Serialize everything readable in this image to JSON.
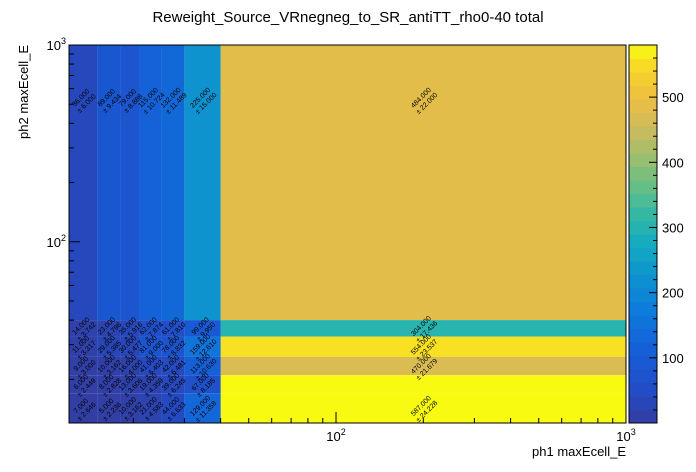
{
  "chart_data": {
    "type": "heatmap",
    "title": "Reweight_Source_VRnegneg_to_SR_antiTT_rho0-40 total",
    "xlabel": "ph1 maxEcell_E",
    "ylabel": "ph2 maxEcell_E",
    "xscale": "log",
    "yscale": "log",
    "xlim": [
      12,
      1000
    ],
    "ylim": [
      12,
      1000
    ],
    "x_tick_labels": [
      "10^2",
      "10^3"
    ],
    "y_tick_labels": [
      "10^2",
      "10^3"
    ],
    "x_edges": [
      12,
      15,
      18,
      21,
      25,
      30,
      40,
      1000
    ],
    "y_edges": [
      12,
      17,
      21,
      26,
      33,
      40,
      1000
    ],
    "z_range": [
      0,
      580
    ],
    "colorbar_ticks": [
      "100",
      "200",
      "300",
      "400",
      "500"
    ],
    "cells": [
      {
        "xi": 6,
        "yi": 5,
        "value": 484.0,
        "error": 22.0,
        "label": "484.000",
        "err_label": "± 22.000"
      },
      {
        "xi": 6,
        "yi": 4,
        "value": 304.0,
        "error": 17.436,
        "label": "304.000",
        "err_label": "± 17.436"
      },
      {
        "xi": 6,
        "yi": 3,
        "value": 554.0,
        "error": 23.537,
        "label": "554.000",
        "err_label": "± 23.537"
      },
      {
        "xi": 6,
        "yi": 2,
        "value": 470.0,
        "error": 21.679,
        "label": "470.000",
        "err_label": "± 21.679"
      },
      {
        "xi": 6,
        "yi": 0,
        "value": 587.0,
        "error": 24.228,
        "label": "587.000",
        "err_label": "± 24.228"
      },
      {
        "xi": 6,
        "yi": 1,
        "value": 587.0,
        "error": null,
        "label": null,
        "err_label": null
      },
      {
        "xi": 0,
        "yi": 5,
        "value": 36.0,
        "error": 6.0,
        "label": "36.000",
        "err_label": "± 6.000"
      },
      {
        "xi": 1,
        "yi": 5,
        "value": 89.0,
        "error": 9.434,
        "label": "89.000",
        "err_label": "± 9.434"
      },
      {
        "xi": 2,
        "yi": 5,
        "value": 79.0,
        "error": 8.888,
        "label": "79.000",
        "err_label": "± 8.888"
      },
      {
        "xi": 3,
        "yi": 5,
        "value": 115.0,
        "error": 10.724,
        "label": "115.000",
        "err_label": "± 10.724"
      },
      {
        "xi": 4,
        "yi": 5,
        "value": 132.0,
        "error": 11.489,
        "label": "132.000",
        "err_label": "± 11.489"
      },
      {
        "xi": 5,
        "yi": 5,
        "value": 225.0,
        "error": 15.0,
        "label": "225.000",
        "err_label": "± 15.000"
      },
      {
        "xi": 0,
        "yi": 4,
        "value": 14.0,
        "error": 3.742,
        "label": "14.000",
        "err_label": "± 3.742"
      },
      {
        "xi": 1,
        "yi": 4,
        "value": 23.0,
        "error": 4.796,
        "label": "23.000",
        "err_label": "± 4.796"
      },
      {
        "xi": 2,
        "yi": 4,
        "value": 35.0,
        "error": 5.916,
        "label": "35.000",
        "err_label": "± 5.916"
      },
      {
        "xi": 3,
        "yi": 4,
        "value": 62.0,
        "error": 7.874,
        "label": "62.000",
        "err_label": "± 7.874"
      },
      {
        "xi": 4,
        "yi": 4,
        "value": 61.0,
        "error": 7.81,
        "label": "61.000",
        "err_label": "± 7.810"
      },
      {
        "xi": 5,
        "yi": 4,
        "value": 99.0,
        "error": 9.95,
        "label": "99.000",
        "err_label": "± 9.950"
      },
      {
        "xi": 0,
        "yi": 3,
        "value": 11.0,
        "error": 3.317,
        "label": "11.000",
        "err_label": "± 3.317"
      },
      {
        "xi": 1,
        "yi": 3,
        "value": 29.0,
        "error": 5.385,
        "label": "29.000",
        "err_label": "± 5.385"
      },
      {
        "xi": 2,
        "yi": 3,
        "value": 30.0,
        "error": 5.477,
        "label": "30.000",
        "err_label": "± 5.477"
      },
      {
        "xi": 3,
        "yi": 3,
        "value": 81.0,
        "error": 9.0,
        "label": "81.000",
        "err_label": "± 9.000"
      },
      {
        "xi": 4,
        "yi": 3,
        "value": 78.0,
        "error": 8.832,
        "label": "78.000",
        "err_label": "± 8.832"
      },
      {
        "xi": 5,
        "yi": 3,
        "value": 159.0,
        "error": 12.61,
        "label": "159.000",
        "err_label": "± 12.610"
      },
      {
        "xi": 0,
        "yi": 2,
        "value": 9.0,
        "error": 3.0,
        "label": "9.000",
        "err_label": "± 3.000"
      },
      {
        "xi": 1,
        "yi": 2,
        "value": 10.0,
        "error": 3.162,
        "label": "10.000",
        "err_label": "± 3.162"
      },
      {
        "xi": 2,
        "yi": 2,
        "value": 16.0,
        "error": 4.0,
        "label": "16.000",
        "err_label": "± 4.000"
      },
      {
        "xi": 3,
        "yi": 2,
        "value": 41.0,
        "error": 6.403,
        "label": "41.000",
        "err_label": "± 6.403"
      },
      {
        "xi": 4,
        "yi": 2,
        "value": 42.0,
        "error": 6.481,
        "label": "42.000",
        "err_label": "± 6.481"
      },
      {
        "xi": 5,
        "yi": 2,
        "value": 113.0,
        "error": 10.63,
        "label": "113.000",
        "err_label": "± 10.630"
      },
      {
        "xi": 0,
        "yi": 1,
        "value": 6.0,
        "error": 2.449,
        "label": "6.000",
        "err_label": "± 2.449"
      },
      {
        "xi": 1,
        "yi": 1,
        "value": 8.0,
        "error": 2.828,
        "label": "8.000",
        "err_label": "± 2.828"
      },
      {
        "xi": 2,
        "yi": 1,
        "value": 13.0,
        "error": 3.606,
        "label": "13.000",
        "err_label": "± 3.606"
      },
      {
        "xi": 3,
        "yi": 1,
        "value": 19.0,
        "error": 4.359,
        "label": "19.000",
        "err_label": "± 4.359"
      },
      {
        "xi": 4,
        "yi": 1,
        "value": 39.0,
        "error": 6.245,
        "label": "39.000",
        "err_label": "± 6.245"
      },
      {
        "xi": 5,
        "yi": 1,
        "value": 67.0,
        "error": 8.185,
        "label": "67.000",
        "err_label": "± 8.185"
      },
      {
        "xi": 0,
        "yi": 0,
        "value": 7.0,
        "error": 2.646,
        "label": "7.000",
        "err_label": "± 2.646"
      },
      {
        "xi": 1,
        "yi": 0,
        "value": 5.0,
        "error": 2.236,
        "label": "5.000",
        "err_label": "± 2.236"
      },
      {
        "xi": 2,
        "yi": 0,
        "value": 10.0,
        "error": 3.162,
        "label": "10.000",
        "err_label": "± 3.162"
      },
      {
        "xi": 3,
        "yi": 0,
        "value": 21.0,
        "error": 4.583,
        "label": "21.000",
        "err_label": "± 4.583"
      },
      {
        "xi": 4,
        "yi": 0,
        "value": 44.0,
        "error": 6.633,
        "label": "44.000",
        "err_label": "± 6.633"
      },
      {
        "xi": 5,
        "yi": 0,
        "value": 129.0,
        "error": 11.358,
        "label": "129.000",
        "err_label": "± 11.358"
      }
    ]
  }
}
